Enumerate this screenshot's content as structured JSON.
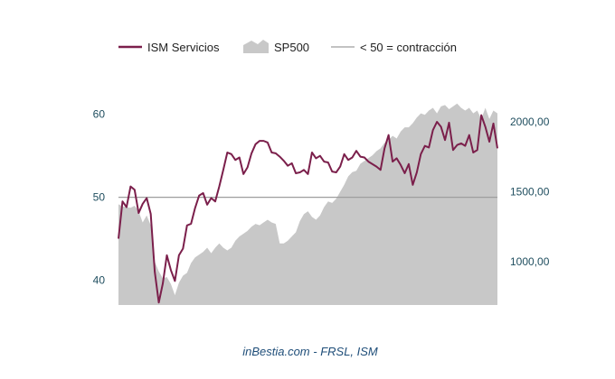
{
  "chart_data": {
    "type": "line",
    "series": [
      {
        "name": "ISM Servicios",
        "type": "line",
        "axis": "left",
        "color": "#7b1f4b",
        "values": [
          45.0,
          49.5,
          48.8,
          51.3,
          50.9,
          48.1,
          49.2,
          49.9,
          48.0,
          41.0,
          37.3,
          39.6,
          43.0,
          41.2,
          39.9,
          43.0,
          43.8,
          46.6,
          46.8,
          48.7,
          50.2,
          50.5,
          49.1,
          49.9,
          49.5,
          51.3,
          53.3,
          55.4,
          55.2,
          54.5,
          54.8,
          52.8,
          53.6,
          55.3,
          56.4,
          56.8,
          56.8,
          56.6,
          55.4,
          55.3,
          54.9,
          54.4,
          53.8,
          54.1,
          52.9,
          53.0,
          53.3,
          52.8,
          55.4,
          54.7,
          55.0,
          54.3,
          54.2,
          53.1,
          53.0,
          53.7,
          55.2,
          54.5,
          54.8,
          55.6,
          54.9,
          54.8,
          54.3,
          54.0,
          53.7,
          53.3,
          55.9,
          57.5,
          54.3,
          54.7,
          53.9,
          52.9,
          54.0,
          51.5,
          53.0,
          55.2,
          56.2,
          56.0,
          58.1,
          59.1,
          58.5,
          56.9,
          59.0,
          55.7,
          56.3,
          56.5,
          56.2,
          57.5,
          55.4,
          55.7,
          59.9,
          58.5,
          56.7,
          58.9,
          55.9
        ],
        "x": [
          0,
          1,
          2,
          3,
          4,
          5,
          6,
          7,
          8,
          9,
          10,
          11,
          12,
          13,
          14,
          15,
          16,
          17,
          18,
          19,
          20,
          21,
          22,
          23,
          24,
          25,
          26,
          27,
          28,
          29,
          30,
          31,
          32,
          33,
          34,
          35,
          36,
          37,
          38,
          39,
          40,
          41,
          42,
          43,
          44,
          45,
          46,
          47,
          48,
          49,
          50,
          51,
          52,
          53,
          54,
          55,
          56,
          57,
          58,
          59,
          60,
          61,
          62,
          63,
          64,
          65,
          66,
          67,
          68,
          69,
          70,
          71,
          72,
          73,
          74,
          75,
          76,
          77,
          78,
          79,
          80,
          81,
          82,
          83,
          84,
          85,
          86,
          87,
          88,
          89,
          90,
          91,
          92,
          93,
          94
        ]
      },
      {
        "name": "SP500",
        "type": "area",
        "axis": "right",
        "color": "#c8c8c8",
        "values": [
          1410,
          1395,
          1390,
          1385,
          1400,
          1360,
          1280,
          1330,
          1260,
          1000,
          930,
          880,
          890,
          840,
          760,
          850,
          900,
          920,
          990,
          1030,
          1050,
          1070,
          1100,
          1060,
          1100,
          1130,
          1100,
          1080,
          1100,
          1150,
          1180,
          1200,
          1220,
          1250,
          1270,
          1260,
          1280,
          1300,
          1280,
          1270,
          1130,
          1130,
          1150,
          1180,
          1210,
          1290,
          1340,
          1360,
          1320,
          1300,
          1330,
          1390,
          1430,
          1420,
          1450,
          1500,
          1550,
          1610,
          1640,
          1650,
          1700,
          1720,
          1740,
          1760,
          1790,
          1810,
          1850,
          1870,
          1900,
          1880,
          1930,
          1960,
          1960,
          1990,
          2030,
          2060,
          2050,
          2080,
          2100,
          2060,
          2110,
          2120,
          2090,
          2110,
          2130,
          2100,
          2080,
          2100,
          2060,
          2080,
          2020,
          2100,
          2020,
          2080,
          2060
        ],
        "x": [
          0,
          1,
          2,
          3,
          4,
          5,
          6,
          7,
          8,
          9,
          10,
          11,
          12,
          13,
          14,
          15,
          16,
          17,
          18,
          19,
          20,
          21,
          22,
          23,
          24,
          25,
          26,
          27,
          28,
          29,
          30,
          31,
          32,
          33,
          34,
          35,
          36,
          37,
          38,
          39,
          40,
          41,
          42,
          43,
          44,
          45,
          46,
          47,
          48,
          49,
          50,
          51,
          52,
          53,
          54,
          55,
          56,
          57,
          58,
          59,
          60,
          61,
          62,
          63,
          64,
          65,
          66,
          67,
          68,
          69,
          70,
          71,
          72,
          73,
          74,
          75,
          76,
          77,
          78,
          79,
          80,
          81,
          82,
          83,
          84,
          85,
          86,
          87,
          88,
          89,
          90,
          91,
          92,
          93,
          94
        ]
      },
      {
        "name": "< 50 = contracción",
        "type": "reference-line",
        "axis": "left",
        "color": "#9e9e9e",
        "values": [
          50
        ]
      }
    ],
    "left_axis": {
      "ylim": [
        37,
        64
      ],
      "ticks": [
        40,
        50,
        60
      ]
    },
    "right_axis": {
      "ylim": [
        690,
        2290
      ],
      "ticks": [
        1000,
        1500,
        2000
      ],
      "tick_labels": [
        "1000,00",
        "1500,00",
        "2000,00"
      ]
    },
    "grid": false,
    "legend_position": "top",
    "source": "inBestia.com - FRSL, ISM"
  }
}
